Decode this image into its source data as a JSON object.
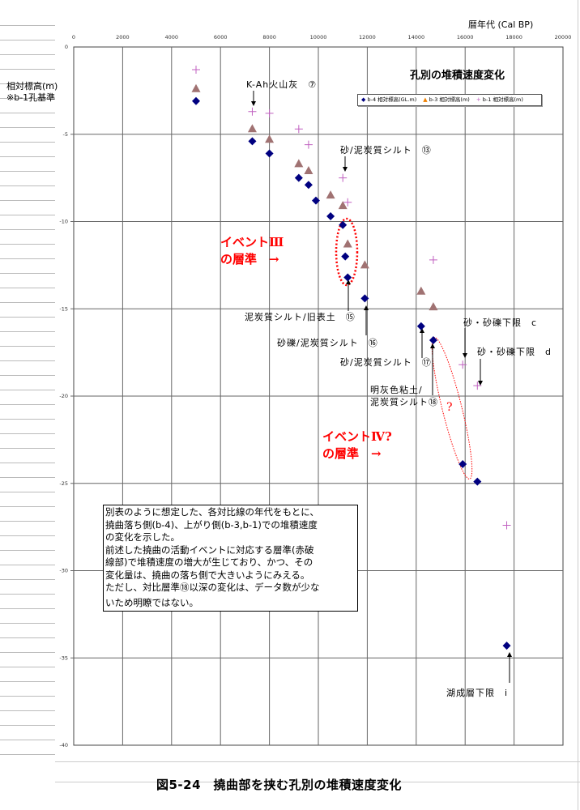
{
  "chart_data": {
    "type": "scatter",
    "title": "孔別の堆積速度変化",
    "xlabel": "暦年代 (Cal BP)",
    "ylabel": "相対標高(m)",
    "ylabel_note": "※b-1孔基準",
    "xlim": [
      0,
      20000
    ],
    "ylim": [
      -40,
      0
    ],
    "x_ticks": [
      "0",
      "2000",
      "4000",
      "6000",
      "8000",
      "10000",
      "12000",
      "14000",
      "16000",
      "18000",
      "20000"
    ],
    "y_ticks": [
      "0",
      "-5",
      "-10",
      "-15",
      "-20",
      "-25",
      "-30",
      "-35",
      "-40"
    ],
    "x_axis_position": "top",
    "grid": true,
    "legend_position": "top-right",
    "series": [
      {
        "name": "b-4 相対標高(GL.m)",
        "marker": "diamond",
        "color": "#000080",
        "points": [
          [
            5000,
            -3.1
          ],
          [
            7300,
            -5.4
          ],
          [
            8000,
            -6.1
          ],
          [
            9200,
            -7.5
          ],
          [
            9600,
            -7.9
          ],
          [
            9900,
            -8.8
          ],
          [
            10500,
            -9.7
          ],
          [
            11000,
            -10.2
          ],
          [
            11100,
            -12.0
          ],
          [
            11200,
            -13.2
          ],
          [
            11900,
            -14.4
          ],
          [
            14200,
            -16.0
          ],
          [
            14700,
            -16.8
          ],
          [
            15900,
            -23.9
          ],
          [
            16500,
            -24.9
          ],
          [
            17700,
            -34.3
          ]
        ]
      },
      {
        "name": "b-3 相対標高(m)",
        "marker": "triangle",
        "color": "#a07272",
        "points": [
          [
            5000,
            -2.4
          ],
          [
            7300,
            -4.7
          ],
          [
            8000,
            -5.3
          ],
          [
            9200,
            -6.7
          ],
          [
            9600,
            -7.1
          ],
          [
            10500,
            -8.5
          ],
          [
            11000,
            -9.1
          ],
          [
            11200,
            -11.3
          ],
          [
            11900,
            -12.5
          ],
          [
            14200,
            -14.0
          ],
          [
            14700,
            -14.9
          ]
        ]
      },
      {
        "name": "b-1 相対標高(m)",
        "marker": "plus",
        "color": "#c060c0",
        "points": [
          [
            5000,
            -1.3
          ],
          [
            7300,
            -3.7
          ],
          [
            8000,
            -3.8
          ],
          [
            9200,
            -4.7
          ],
          [
            9600,
            -5.6
          ],
          [
            11000,
            -7.5
          ],
          [
            11200,
            -8.9
          ],
          [
            14700,
            -12.2
          ],
          [
            15900,
            -18.2
          ],
          [
            16500,
            -19.4
          ],
          [
            17700,
            -27.4
          ]
        ]
      }
    ],
    "annotations": {
      "kah": "K-Ah火山灰　⑦",
      "l13": "砂/泥炭質シルト　⑬",
      "l15": "泥炭質シルト/旧表土　⑮",
      "l16": "砂礫/泥炭質シルト　⑯",
      "l17": "砂/泥炭質シルト　⑰",
      "l18a": "明灰色粘土/",
      "l18b": "泥炭質シルト⑱",
      "c": "砂・砂礫下限　c",
      "d": "砂・砂礫下限　d",
      "i": "湖成層下限　i",
      "q": "?",
      "ev3a": "イベントⅢ",
      "ev3b": "の層準　→",
      "ev4a": "イベントⅣ?",
      "ev4b": "の層準　→"
    }
  },
  "textbox": {
    "lines": [
      "別表のように想定した、各対比線の年代をもとに、",
      "撓曲落ち側(b-4)、上がり側(b-3,b-1)での堆積速度",
      "の変化を示した。",
      "前述した撓曲の活動イベントに対応する層準(赤破",
      "線部)で堆積速度の増大が生じており、かつ、その",
      "変化量は、撓曲の落ち側で大きいようにみえる。",
      "ただし、対比層準⑱以深の変化は、データ数が少な",
      "いため明瞭ではない。"
    ]
  },
  "caption": "図5-24　撓曲部を挟む孔別の堆積速度変化",
  "colors": {
    "highlight": "#ff0000",
    "grid": "#555555"
  }
}
